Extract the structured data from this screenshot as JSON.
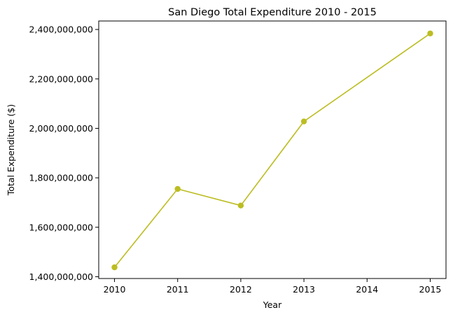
{
  "chart_data": {
    "type": "line",
    "title": "San Diego Total Expenditure 2010 - 2015",
    "xlabel": "Year",
    "ylabel": "Total Expenditure ($)",
    "x": [
      2010,
      2011,
      2012,
      2013,
      2015
    ],
    "series": [
      {
        "values": [
          1438000000,
          1755000000,
          1688000000,
          2028000000,
          2384000000
        ]
      }
    ],
    "xticks": [
      2010,
      2011,
      2012,
      2013,
      2014,
      2015
    ],
    "xtick_labels": [
      "2010",
      "2011",
      "2012",
      "2013",
      "2014",
      "2015"
    ],
    "yticks": [
      1400000000,
      1600000000,
      1800000000,
      2000000000,
      2200000000,
      2400000000
    ],
    "ytick_labels": [
      "1,400,000,000",
      "1,600,000,000",
      "1,800,000,000",
      "2,000,000,000",
      "2,200,000,000",
      "2,400,000,000"
    ],
    "xlim": [
      2009.75,
      2015.25
    ],
    "ylim": [
      1392700000,
      2434300000
    ],
    "grid": false,
    "line_color": "#bcbd22",
    "marker": "circle"
  }
}
